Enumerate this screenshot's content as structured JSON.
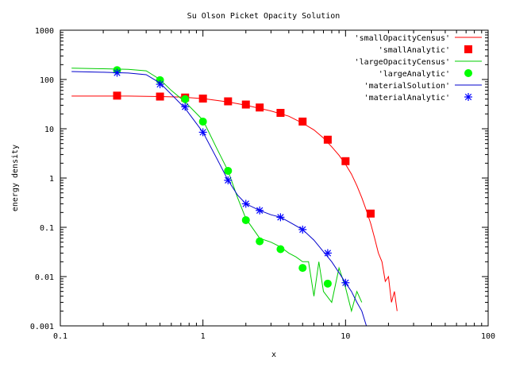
{
  "chart_data": {
    "type": "line",
    "title": "Su Olson Picket Opacity Solution",
    "xlabel": "x",
    "ylabel": "energy density",
    "x_scale": "log",
    "y_scale": "log",
    "xlim": [
      0.1,
      100
    ],
    "ylim": [
      0.001,
      1000
    ],
    "x_ticks": [
      "0.1",
      "1",
      "10",
      "100"
    ],
    "y_ticks": [
      "0.001",
      "0.01",
      "0.1",
      "1",
      "10",
      "100",
      "1000"
    ],
    "grid": false,
    "legend_position": "top-right",
    "series": [
      {
        "name": "'smallOpacityCensus'",
        "style": "line",
        "color": "#ff0000",
        "x": [
          0.12,
          0.2,
          0.3,
          0.5,
          0.7,
          1.0,
          1.5,
          2.0,
          3.0,
          4.0,
          5.0,
          6.0,
          7.0,
          8.0,
          9.0,
          10.0,
          11.0,
          12.0,
          13.0,
          14.0,
          15.0,
          16.0,
          17.0,
          18.0,
          19.0,
          20.0,
          21.0,
          22.0,
          23.0
        ],
        "y": [
          46,
          46,
          46,
          45,
          44,
          41,
          35,
          30,
          23,
          18,
          13,
          9.5,
          6.5,
          4.3,
          2.9,
          1.9,
          1.2,
          0.7,
          0.4,
          0.22,
          0.12,
          0.06,
          0.03,
          0.02,
          0.008,
          0.01,
          0.003,
          0.005,
          0.002
        ]
      },
      {
        "name": "'smallAnalytic'",
        "style": "markers",
        "marker": "square",
        "color": "#ff0000",
        "x": [
          0.25,
          0.5,
          0.75,
          1.0,
          1.5,
          2.0,
          2.5,
          3.5,
          5.0,
          7.5,
          10.0,
          15.0
        ],
        "y": [
          47,
          45,
          43,
          41,
          36,
          31,
          27,
          21,
          14,
          6,
          2.2,
          0.19
        ]
      },
      {
        "name": "'largeOpacityCensus'",
        "style": "line",
        "color": "#00cc00",
        "x": [
          0.12,
          0.2,
          0.3,
          0.4,
          0.5,
          0.6,
          0.75,
          1.0,
          1.25,
          1.5,
          1.75,
          2.0,
          2.5,
          3.0,
          3.5,
          4.0,
          4.5,
          5.0,
          5.5,
          6.0,
          6.5,
          7.0,
          8.0,
          9.0,
          10.0,
          11.0,
          12.0,
          13.0
        ],
        "y": [
          170,
          165,
          160,
          150,
          100,
          60,
          35,
          15,
          4,
          1.4,
          0.4,
          0.15,
          0.06,
          0.05,
          0.04,
          0.03,
          0.025,
          0.02,
          0.02,
          0.004,
          0.02,
          0.005,
          0.003,
          0.015,
          0.006,
          0.002,
          0.005,
          0.003
        ]
      },
      {
        "name": "'largeAnalytic'",
        "style": "markers",
        "marker": "circle",
        "color": "#00ff00",
        "x": [
          0.25,
          0.5,
          0.75,
          1.0,
          1.5,
          2.0,
          2.5,
          3.5,
          5.0,
          7.5
        ],
        "y": [
          155,
          97,
          40,
          14,
          1.4,
          0.14,
          0.052,
          0.036,
          0.015,
          0.0072
        ]
      },
      {
        "name": "'materialSolution'",
        "style": "line",
        "color": "#0000cc",
        "x": [
          0.12,
          0.2,
          0.3,
          0.4,
          0.5,
          0.6,
          0.75,
          1.0,
          1.25,
          1.5,
          1.75,
          2.0,
          2.5,
          3.0,
          3.5,
          4.0,
          5.0,
          6.0,
          7.0,
          8.0,
          9.0,
          10.0,
          11.0,
          12.0,
          13.0,
          14.0
        ],
        "y": [
          145,
          140,
          135,
          125,
          85,
          50,
          26,
          8.5,
          2.5,
          0.9,
          0.45,
          0.3,
          0.22,
          0.18,
          0.16,
          0.13,
          0.09,
          0.055,
          0.032,
          0.02,
          0.012,
          0.0075,
          0.005,
          0.003,
          0.002,
          0.001
        ]
      },
      {
        "name": "'materialAnalytic'",
        "style": "markers",
        "marker": "asterisk",
        "color": "#0000ff",
        "x": [
          0.25,
          0.5,
          0.75,
          1.0,
          1.5,
          2.0,
          2.5,
          3.5,
          5.0,
          7.5,
          10.0
        ],
        "y": [
          137,
          80,
          28,
          8.5,
          0.9,
          0.3,
          0.22,
          0.16,
          0.09,
          0.03,
          0.0075
        ]
      }
    ]
  }
}
